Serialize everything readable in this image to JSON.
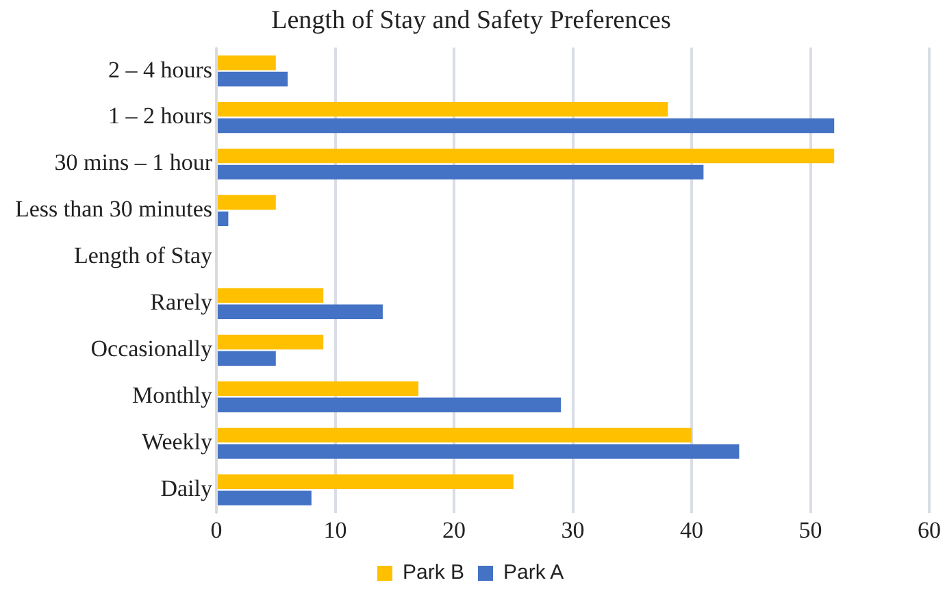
{
  "chart_data": {
    "type": "bar",
    "orientation": "horizontal",
    "title": "Length of Stay and Safety Preferences",
    "categories": [
      "2 – 4 hours",
      "1 – 2 hours",
      "30 mins – 1 hour",
      "Less than 30 minutes",
      "Length of Stay",
      "Rarely",
      "Occasionally",
      "Monthly",
      "Weekly",
      "Daily"
    ],
    "series": [
      {
        "name": "Park B",
        "color": "#ffc000",
        "values": [
          5,
          38,
          52,
          5,
          null,
          9,
          9,
          17,
          40,
          25
        ]
      },
      {
        "name": "Park A",
        "color": "#4472c4",
        "values": [
          6,
          52,
          41,
          1,
          null,
          14,
          5,
          29,
          44,
          8
        ]
      }
    ],
    "xlim": [
      0,
      60
    ],
    "xticks": [
      0,
      10,
      20,
      30,
      40,
      50,
      60
    ],
    "grid": "x",
    "legend": "bottom"
  }
}
